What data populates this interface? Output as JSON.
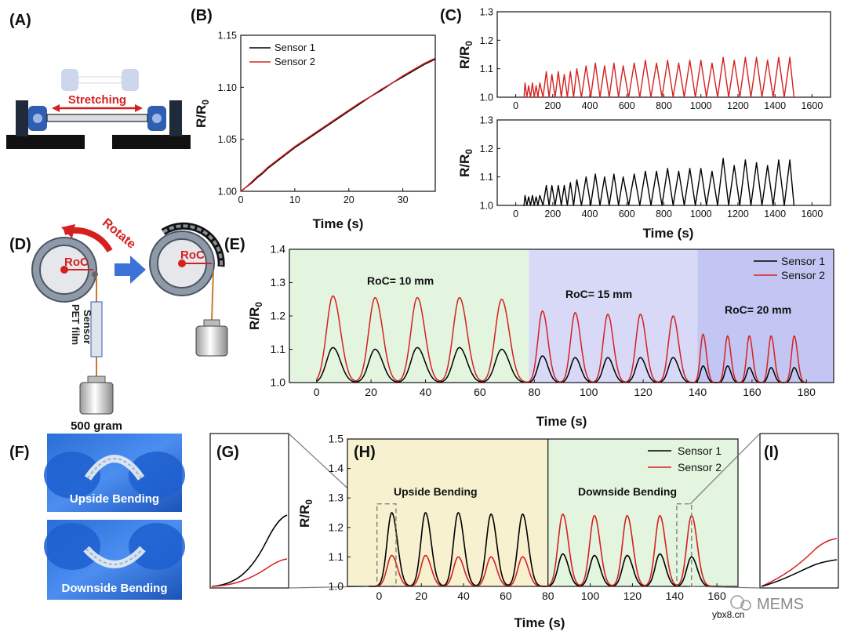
{
  "panels": {
    "A": {
      "label": "(A)",
      "stretch_label": "Stretching"
    },
    "B": {
      "label": "(B)"
    },
    "C": {
      "label": "(C)"
    },
    "D": {
      "label": "(D)",
      "rotate": "Rotate",
      "roc": "RoC",
      "sensor": "Sensor",
      "pet": "PET film",
      "weight": "500 gram"
    },
    "E": {
      "label": "(E)"
    },
    "F": {
      "label": "(F)",
      "upside": "Upside Bending",
      "downside": "Downside Bending"
    },
    "G": {
      "label": "(G)"
    },
    "H": {
      "label": "(H)",
      "region1": "Upside Bending",
      "region2": "Downside Bending"
    },
    "I": {
      "label": "(I)"
    }
  },
  "watermark": {
    "brand": "MEMS",
    "site": "ybx8.cn"
  },
  "colors": {
    "sensor1": "#000000",
    "sensor2": "#d62020",
    "green_bg": "#e3f5df",
    "blue_bg1": "#d7d9f7",
    "blue_bg2": "#c3c6f2",
    "yellow_bg": "#f7f1cf",
    "device_blue": "#2f5fb3"
  },
  "chart_data": [
    {
      "id": "B",
      "type": "line",
      "xlabel": "Time (s)",
      "ylabel": "R/R",
      "ylabel_sub": "0",
      "xlim": [
        0,
        36
      ],
      "ylim": [
        1.0,
        1.15
      ],
      "xticks": [
        "0",
        "10",
        "20",
        "30"
      ],
      "yticks": [
        "1.00",
        "1.05",
        "1.10",
        "1.15"
      ],
      "legend": [
        "Sensor 1",
        "Sensor 2"
      ],
      "series": [
        {
          "name": "Sensor 1",
          "x": [
            0,
            1,
            2,
            3,
            4,
            5,
            6,
            8,
            10,
            12,
            14,
            16,
            18,
            20,
            22,
            24,
            26,
            28,
            30,
            32,
            34,
            36
          ],
          "y": [
            1.0,
            1.004,
            1.008,
            1.013,
            1.017,
            1.022,
            1.026,
            1.034,
            1.042,
            1.049,
            1.056,
            1.063,
            1.07,
            1.077,
            1.084,
            1.091,
            1.097,
            1.104,
            1.11,
            1.116,
            1.122,
            1.127
          ]
        },
        {
          "name": "Sensor 2",
          "x": [
            0,
            1,
            2,
            3,
            4,
            5,
            6,
            8,
            10,
            12,
            14,
            16,
            18,
            20,
            22,
            24,
            26,
            28,
            30,
            32,
            34,
            36
          ],
          "y": [
            1.0,
            1.004,
            1.009,
            1.014,
            1.018,
            1.023,
            1.027,
            1.035,
            1.043,
            1.05,
            1.057,
            1.064,
            1.071,
            1.078,
            1.085,
            1.091,
            1.098,
            1.104,
            1.111,
            1.117,
            1.123,
            1.128
          ]
        }
      ]
    },
    {
      "id": "C_top",
      "type": "line",
      "ylabel": "R/R",
      "ylabel_sub": "0",
      "xlim": [
        -100,
        1700
      ],
      "ylim": [
        1.0,
        1.3
      ],
      "xticks": [
        "0",
        "200",
        "400",
        "600",
        "800",
        "1000",
        "1200",
        "1400",
        "1600"
      ],
      "yticks": [
        "1.0",
        "1.1",
        "1.2",
        "1.3"
      ],
      "series": [
        {
          "name": "Sensor 2",
          "peak_times": [
            50,
            70,
            90,
            110,
            130,
            165,
            195,
            230,
            262,
            295,
            330,
            380,
            430,
            480,
            530,
            580,
            640,
            700,
            760,
            820,
            880,
            940,
            1000,
            1060,
            1120,
            1180,
            1240,
            1300,
            1360,
            1420,
            1480
          ],
          "peaks": [
            1.05,
            1.04,
            1.05,
            1.04,
            1.05,
            1.09,
            1.08,
            1.09,
            1.08,
            1.09,
            1.1,
            1.11,
            1.12,
            1.11,
            1.12,
            1.11,
            1.12,
            1.13,
            1.12,
            1.13,
            1.12,
            1.13,
            1.13,
            1.12,
            1.14,
            1.13,
            1.14,
            1.14,
            1.13,
            1.14,
            1.14
          ]
        }
      ]
    },
    {
      "id": "C_bottom",
      "type": "line",
      "xlabel": "Time (s)",
      "ylabel": "R/R",
      "ylabel_sub": "0",
      "xlim": [
        -100,
        1700
      ],
      "ylim": [
        1.0,
        1.3
      ],
      "xticks": [
        "0",
        "200",
        "400",
        "600",
        "800",
        "1000",
        "1200",
        "1400",
        "1600"
      ],
      "yticks": [
        "1.0",
        "1.1",
        "1.2",
        "1.3"
      ],
      "series": [
        {
          "name": "Sensor 1",
          "peak_times": [
            50,
            70,
            90,
            110,
            130,
            165,
            195,
            230,
            262,
            295,
            330,
            380,
            430,
            480,
            530,
            580,
            640,
            700,
            760,
            820,
            880,
            940,
            1000,
            1060,
            1120,
            1180,
            1240,
            1300,
            1360,
            1420,
            1480
          ],
          "peaks": [
            1.035,
            1.03,
            1.035,
            1.03,
            1.035,
            1.07,
            1.07,
            1.07,
            1.07,
            1.08,
            1.09,
            1.1,
            1.11,
            1.1,
            1.11,
            1.1,
            1.11,
            1.12,
            1.12,
            1.13,
            1.12,
            1.13,
            1.13,
            1.12,
            1.165,
            1.14,
            1.16,
            1.15,
            1.14,
            1.16,
            1.16
          ]
        }
      ]
    },
    {
      "id": "E",
      "type": "line",
      "xlabel": "Time (s)",
      "ylabel": "R/R",
      "ylabel_sub": "0",
      "xlim": [
        -10,
        190
      ],
      "ylim": [
        1.0,
        1.4
      ],
      "xticks": [
        "0",
        "20",
        "40",
        "60",
        "80",
        "100",
        "120",
        "140",
        "160",
        "180"
      ],
      "yticks": [
        "1.0",
        "1.1",
        "1.2",
        "1.3",
        "1.4"
      ],
      "regions": [
        {
          "from": -10,
          "to": 78,
          "label": "RoC= 10 mm"
        },
        {
          "from": 78,
          "to": 140,
          "label": "RoC= 15 mm"
        },
        {
          "from": 140,
          "to": 190,
          "label": "RoC= 20 mm"
        }
      ],
      "legend": [
        "Sensor 1",
        "Sensor 2"
      ],
      "series": [
        {
          "name": "Sensor 1",
          "peak_times": [
            6,
            21.5,
            37,
            52.5,
            68,
            83,
            95,
            107,
            119,
            131,
            142,
            151,
            159,
            167,
            175.5
          ],
          "peaks": [
            1.105,
            1.1,
            1.105,
            1.105,
            1.1,
            1.08,
            1.075,
            1.075,
            1.075,
            1.075,
            1.05,
            1.05,
            1.045,
            1.045,
            1.045
          ]
        },
        {
          "name": "Sensor 2",
          "peak_times": [
            6,
            21.5,
            37,
            52.5,
            68,
            83,
            95,
            107,
            119,
            131,
            142,
            151,
            159,
            167,
            175.5
          ],
          "peaks": [
            1.26,
            1.255,
            1.255,
            1.255,
            1.25,
            1.215,
            1.21,
            1.205,
            1.205,
            1.2,
            1.145,
            1.14,
            1.14,
            1.14,
            1.14
          ]
        }
      ]
    },
    {
      "id": "H",
      "type": "line",
      "xlabel": "Time (s)",
      "ylabel": "R/R",
      "ylabel_sub": "0",
      "xlim": [
        -15,
        170
      ],
      "ylim": [
        1.0,
        1.5
      ],
      "xticks": [
        "0",
        "20",
        "40",
        "60",
        "80",
        "100",
        "120",
        "140",
        "160"
      ],
      "yticks": [
        "1.0",
        "1.1",
        "1.2",
        "1.3",
        "1.4",
        "1.5"
      ],
      "regions": [
        {
          "from": -15,
          "to": 80,
          "label": "Upside Bending"
        },
        {
          "from": 80,
          "to": 170,
          "label": "Downside Bending"
        }
      ],
      "legend": [
        "Sensor 1",
        "Sensor 2"
      ],
      "series": [
        {
          "name": "Sensor 1",
          "peak_times": [
            6,
            22,
            37.5,
            53,
            68,
            87,
            102,
            117.5,
            133,
            148
          ],
          "peaks": [
            1.25,
            1.25,
            1.25,
            1.245,
            1.245,
            1.11,
            1.105,
            1.105,
            1.11,
            1.1
          ]
        },
        {
          "name": "Sensor 2",
          "peak_times": [
            6,
            22,
            37.5,
            53,
            68,
            87,
            102,
            117.5,
            133,
            148
          ],
          "peaks": [
            1.105,
            1.105,
            1.1,
            1.1,
            1.1,
            1.245,
            1.24,
            1.24,
            1.24,
            1.24
          ]
        }
      ]
    }
  ]
}
